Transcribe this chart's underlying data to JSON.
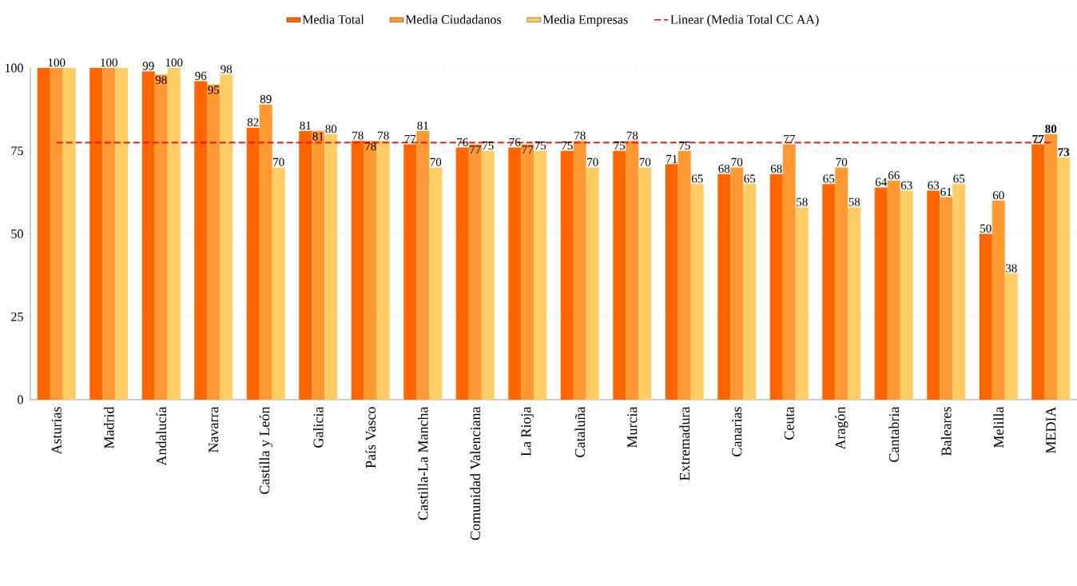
{
  "chart_data": {
    "type": "bar",
    "categories": [
      "Asturias",
      "Madrid",
      "Andalucía",
      "Navarra",
      "Castilla y León",
      "Galicia",
      "País Vasco",
      "Castilla-La Mancha",
      "Comunidad Valenciana",
      "La Rioja",
      "Cataluña",
      "Murcia",
      "Extremadura",
      "Canarias",
      "Ceuta",
      "Aragón",
      "Cantabria",
      "Baleares",
      "Melilla",
      "MEDIA"
    ],
    "series": [
      {
        "name": "Media Total",
        "color": "#ff6600",
        "values": [
          100,
          100,
          99,
          96,
          82,
          81,
          78,
          77,
          76,
          76,
          75,
          75,
          71,
          68,
          68,
          65,
          64,
          63,
          50,
          77
        ],
        "value_labels": [
          null,
          null,
          "99",
          "96",
          "82",
          "81",
          "78",
          "77",
          "76",
          "76",
          "75",
          "75",
          "71",
          "68",
          "68",
          "65",
          "64",
          "63",
          "50",
          "**77**"
        ]
      },
      {
        "name": "Media Ciudadanos",
        "color": "#ff9933",
        "values": [
          100,
          100,
          98,
          95,
          89,
          81,
          78,
          81,
          77,
          77,
          78,
          78,
          75,
          70,
          77,
          70,
          66,
          61,
          60,
          80
        ],
        "value_labels": [
          "100",
          "100",
          "98",
          "95",
          "89",
          "81",
          "78",
          "81",
          "77",
          "77",
          "78",
          "78",
          "75",
          "70",
          "77",
          "70",
          "66",
          "61",
          "60",
          "**80**"
        ]
      },
      {
        "name": "Media Empresas",
        "color": "#ffcc66",
        "values": [
          100,
          100,
          100,
          98,
          70,
          80,
          78,
          70,
          75,
          75,
          70,
          70,
          65,
          65,
          58,
          58,
          63,
          65,
          38,
          73
        ],
        "value_labels": [
          null,
          null,
          "100",
          "98",
          "70",
          "80",
          "78",
          "70",
          "75",
          "75",
          "70",
          "70",
          "65",
          "65",
          "58",
          "58",
          "63",
          "65",
          "38",
          "**73**"
        ]
      },
      {
        "name": "Linear (Media Total CC AA)",
        "type": "line",
        "color": "#ff0000",
        "line_style": "dashed",
        "marker": "none",
        "values": [
          77.5,
          77.5,
          77.5,
          77.5,
          77.5,
          77.5,
          77.5,
          77.5,
          77.5,
          77.5,
          77.5,
          77.5,
          77.5,
          77.5,
          77.5,
          77.5,
          77.5,
          77.5,
          77.5,
          77.5
        ]
      }
    ],
    "ylim": [
      0,
      100
    ],
    "yticks": [
      0,
      25,
      50,
      75,
      100
    ],
    "grid": "y",
    "legend": "top"
  }
}
